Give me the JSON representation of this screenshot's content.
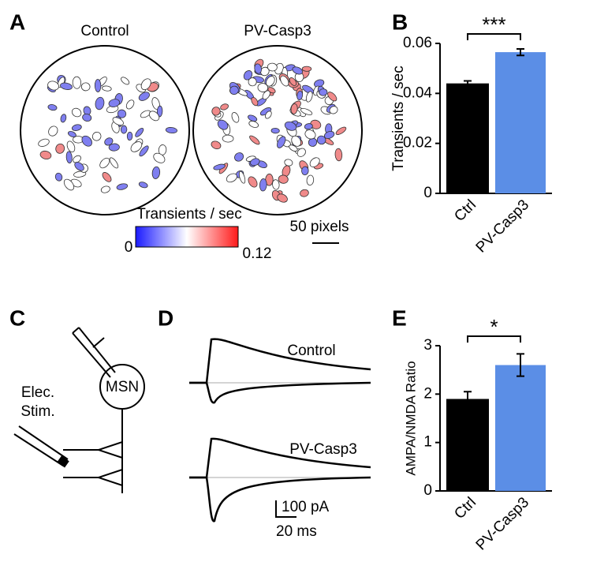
{
  "chart_data": [
    {
      "type": "bar",
      "panel": "B",
      "ylabel": "Transients / sec",
      "categories": [
        "Ctrl",
        "PV-Casp3"
      ],
      "values": [
        0.044,
        0.0565
      ],
      "errors": [
        0.001,
        0.0013
      ],
      "colors": [
        "#000000",
        "#5b8ee6"
      ],
      "ylim": [
        0,
        0.06
      ],
      "yticks": [
        0,
        0.02,
        0.04,
        0.06
      ],
      "significance": "***"
    },
    {
      "type": "bar",
      "panel": "E",
      "ylabel": "AMPA/NMDA Ratio",
      "categories": [
        "Ctrl",
        "PV-Casp3"
      ],
      "values": [
        1.9,
        2.6
      ],
      "errors": [
        0.15,
        0.23
      ],
      "colors": [
        "#000000",
        "#5b8ee6"
      ],
      "ylim": [
        0,
        3
      ],
      "yticks": [
        0,
        1,
        2,
        3
      ],
      "significance": "*"
    }
  ],
  "panel_a": {
    "label": "A",
    "left_title": "Control",
    "right_title": "PV-Casp3",
    "colorbar_title": "Transients / sec",
    "colorbar_min": 0,
    "colorbar_max": 0.12,
    "scale_bar": "50 pixels"
  },
  "panel_c": {
    "label": "C",
    "stim_line1": "Elec.",
    "stim_line2": "Stim.",
    "cell": "MSN"
  },
  "panel_d": {
    "label": "D",
    "top_trace": "Control",
    "bottom_trace": "PV-Casp3",
    "scale_current": "100 pA",
    "scale_time": "20 ms"
  }
}
